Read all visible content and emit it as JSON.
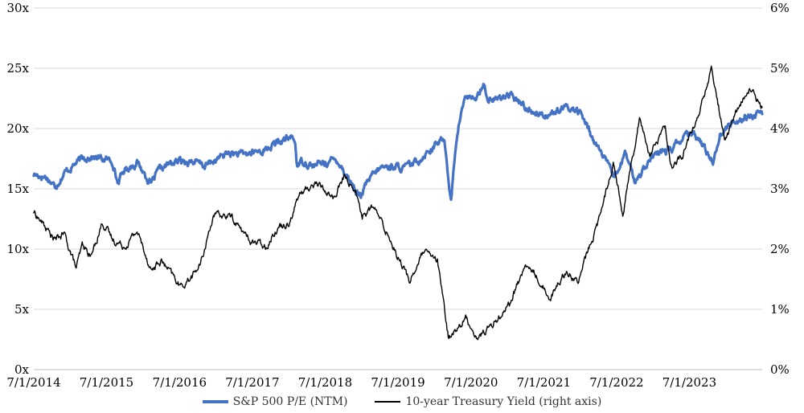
{
  "chart_data": {
    "type": "line",
    "title": "",
    "xlabel": "",
    "ylabel": "",
    "grid": true,
    "legend_position": "bottom",
    "x_range": [
      "2014-07-01",
      "2024-06-30"
    ],
    "x_ticks": [
      "7/1/2014",
      "7/1/2015",
      "7/1/2016",
      "7/1/2017",
      "7/1/2018",
      "7/1/2019",
      "7/1/2020",
      "7/1/2021",
      "7/1/2022",
      "7/1/2023"
    ],
    "x_tick_dates": [
      "2014-07-01",
      "2015-07-01",
      "2016-07-01",
      "2017-07-01",
      "2018-07-01",
      "2019-07-01",
      "2020-07-01",
      "2021-07-01",
      "2022-07-01",
      "2023-07-01"
    ],
    "y_left": {
      "min": 0,
      "max": 30,
      "step": 5,
      "ticks": [
        "0x",
        "5x",
        "10x",
        "15x",
        "20x",
        "25x",
        "30x"
      ]
    },
    "y_right": {
      "min": 0,
      "max": 6,
      "step": 1,
      "ticks": [
        "0%",
        "1%",
        "2%",
        "3%",
        "4%",
        "5%",
        "6%"
      ]
    },
    "series": [
      {
        "name": "S&P 500 P/E (NTM)",
        "axis": "left",
        "color": "#4472C4",
        "points": [
          [
            "2014-07-01",
            16.2
          ],
          [
            "2014-09-01",
            16.0
          ],
          [
            "2014-10-15",
            15.2
          ],
          [
            "2014-12-01",
            16.3
          ],
          [
            "2015-02-01",
            17.2
          ],
          [
            "2015-04-01",
            17.7
          ],
          [
            "2015-06-01",
            17.5
          ],
          [
            "2015-08-01",
            17.3
          ],
          [
            "2015-08-25",
            15.5
          ],
          [
            "2015-10-01",
            16.6
          ],
          [
            "2015-12-01",
            17.2
          ],
          [
            "2016-02-10",
            15.4
          ],
          [
            "2016-03-15",
            16.4
          ],
          [
            "2016-05-01",
            17.0
          ],
          [
            "2016-07-01",
            17.3
          ],
          [
            "2016-09-01",
            17.3
          ],
          [
            "2016-11-01",
            16.9
          ],
          [
            "2017-01-01",
            17.4
          ],
          [
            "2017-03-01",
            18.0
          ],
          [
            "2017-05-01",
            17.8
          ],
          [
            "2017-07-01",
            18.0
          ],
          [
            "2017-09-01",
            18.2
          ],
          [
            "2017-11-01",
            18.8
          ],
          [
            "2018-01-20",
            19.3
          ],
          [
            "2018-02-01",
            18.7
          ],
          [
            "2018-02-10",
            17.0
          ],
          [
            "2018-03-15",
            17.3
          ],
          [
            "2018-05-01",
            16.9
          ],
          [
            "2018-07-01",
            17.2
          ],
          [
            "2018-09-01",
            17.4
          ],
          [
            "2018-10-15",
            16.2
          ],
          [
            "2018-12-24",
            14.3
          ],
          [
            "2019-02-01",
            15.6
          ],
          [
            "2019-04-01",
            16.7
          ],
          [
            "2019-06-01",
            16.9
          ],
          [
            "2019-08-01",
            16.7
          ],
          [
            "2019-10-01",
            17.2
          ],
          [
            "2019-12-01",
            18.2
          ],
          [
            "2020-02-19",
            19.2
          ],
          [
            "2020-03-23",
            13.9
          ],
          [
            "2020-04-15",
            18.5
          ],
          [
            "2020-05-15",
            21.6
          ],
          [
            "2020-06-10",
            22.8
          ],
          [
            "2020-07-15",
            22.2
          ],
          [
            "2020-09-01",
            23.8
          ],
          [
            "2020-09-25",
            22.4
          ],
          [
            "2020-11-01",
            22.4
          ],
          [
            "2021-01-01",
            22.8
          ],
          [
            "2021-03-01",
            22.2
          ],
          [
            "2021-05-01",
            21.4
          ],
          [
            "2021-07-01",
            21.2
          ],
          [
            "2021-09-01",
            21.3
          ],
          [
            "2021-11-01",
            21.8
          ],
          [
            "2022-01-01",
            21.3
          ],
          [
            "2022-03-01",
            19.3
          ],
          [
            "2022-05-01",
            17.5
          ],
          [
            "2022-06-16",
            15.9
          ],
          [
            "2022-08-15",
            17.9
          ],
          [
            "2022-10-01",
            15.6
          ],
          [
            "2022-12-01",
            17.2
          ],
          [
            "2023-02-01",
            18.0
          ],
          [
            "2023-04-01",
            18.2
          ],
          [
            "2023-06-01",
            19.3
          ],
          [
            "2023-08-01",
            19.5
          ],
          [
            "2023-10-27",
            17.3
          ],
          [
            "2023-12-01",
            19.5
          ],
          [
            "2024-02-01",
            20.5
          ],
          [
            "2024-04-01",
            21.0
          ],
          [
            "2024-06-30",
            21.2
          ]
        ]
      },
      {
        "name": "10-year Treasury Yield (right axis)",
        "axis": "right",
        "color": "#000000",
        "points": [
          [
            "2014-07-01",
            2.62
          ],
          [
            "2014-10-15",
            2.15
          ],
          [
            "2014-12-01",
            2.25
          ],
          [
            "2015-01-30",
            1.68
          ],
          [
            "2015-03-01",
            2.05
          ],
          [
            "2015-04-15",
            1.88
          ],
          [
            "2015-06-10",
            2.45
          ],
          [
            "2015-08-01",
            2.15
          ],
          [
            "2015-10-01",
            2.05
          ],
          [
            "2015-12-01",
            2.3
          ],
          [
            "2016-02-11",
            1.65
          ],
          [
            "2016-04-01",
            1.8
          ],
          [
            "2016-07-08",
            1.37
          ],
          [
            "2016-09-01",
            1.55
          ],
          [
            "2016-10-15",
            1.75
          ],
          [
            "2016-12-15",
            2.55
          ],
          [
            "2017-03-15",
            2.55
          ],
          [
            "2017-06-15",
            2.15
          ],
          [
            "2017-09-08",
            2.05
          ],
          [
            "2017-11-01",
            2.35
          ],
          [
            "2018-01-01",
            2.45
          ],
          [
            "2018-02-20",
            2.9
          ],
          [
            "2018-05-17",
            3.1
          ],
          [
            "2018-08-15",
            2.85
          ],
          [
            "2018-10-08",
            3.22
          ],
          [
            "2018-12-01",
            2.95
          ],
          [
            "2019-01-03",
            2.55
          ],
          [
            "2019-03-01",
            2.7
          ],
          [
            "2019-06-01",
            2.1
          ],
          [
            "2019-08-28",
            1.47
          ],
          [
            "2019-11-07",
            1.95
          ],
          [
            "2020-01-15",
            1.8
          ],
          [
            "2020-03-09",
            0.55
          ],
          [
            "2020-04-15",
            0.65
          ],
          [
            "2020-06-05",
            0.85
          ],
          [
            "2020-08-04",
            0.52
          ],
          [
            "2020-10-15",
            0.75
          ],
          [
            "2021-01-10",
            1.1
          ],
          [
            "2021-03-31",
            1.72
          ],
          [
            "2021-05-15",
            1.6
          ],
          [
            "2021-08-04",
            1.19
          ],
          [
            "2021-10-20",
            1.65
          ],
          [
            "2021-12-20",
            1.45
          ],
          [
            "2022-02-01",
            1.9
          ],
          [
            "2022-04-01",
            2.45
          ],
          [
            "2022-06-14",
            3.45
          ],
          [
            "2022-08-01",
            2.6
          ],
          [
            "2022-10-24",
            4.2
          ],
          [
            "2022-12-15",
            3.55
          ],
          [
            "2023-03-02",
            4.05
          ],
          [
            "2023-04-06",
            3.3
          ],
          [
            "2023-06-01",
            3.6
          ],
          [
            "2023-08-15",
            4.2
          ],
          [
            "2023-10-19",
            4.98
          ],
          [
            "2023-12-27",
            3.8
          ],
          [
            "2024-02-15",
            4.25
          ],
          [
            "2024-04-25",
            4.65
          ],
          [
            "2024-06-30",
            4.35
          ]
        ]
      }
    ]
  }
}
